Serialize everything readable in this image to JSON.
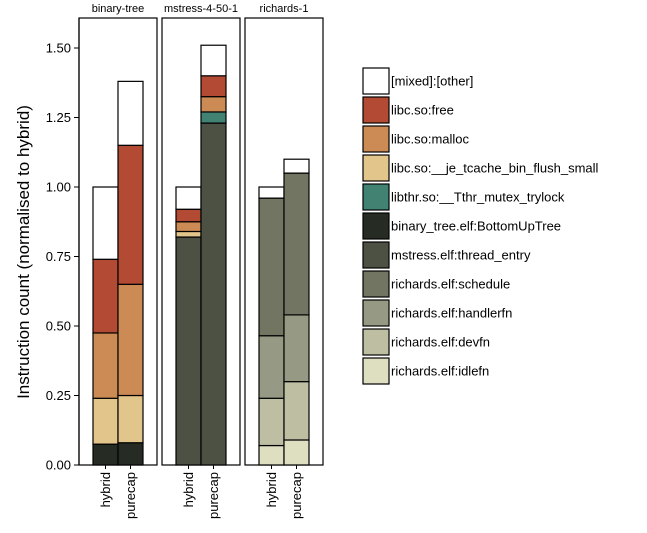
{
  "chart_data": {
    "type": "bar",
    "stacked": true,
    "facets": [
      "binary-tree",
      "mstress-4-50-1",
      "richards-1"
    ],
    "categories": [
      "hybrid",
      "purecap"
    ],
    "ylabel": "Instruction count (normalised to hybrid)",
    "xlabel": "",
    "ylim": [
      0,
      1.55
    ],
    "yticks": [
      0.0,
      0.25,
      0.5,
      0.75,
      1.0,
      1.25,
      1.5
    ],
    "ytick_labels": [
      "0.00",
      "0.25",
      "0.50",
      "0.75",
      "1.00",
      "1.25",
      "1.50"
    ],
    "legend_position": "right",
    "legend": [
      {
        "label": "[mixed]:[other]",
        "color": "#ffffff"
      },
      {
        "label": "libc.so:free",
        "color": "#b34b34"
      },
      {
        "label": "libc.so:malloc",
        "color": "#cc8a55"
      },
      {
        "label": "libc.so:__je_tcache_bin_flush_small",
        "color": "#e2c58a"
      },
      {
        "label": "libthr.so:__Tthr_mutex_trylock",
        "color": "#418273"
      },
      {
        "label": "binary_tree.elf:BottomUpTree",
        "color": "#262c24"
      },
      {
        "label": "mstress.elf:thread_entry",
        "color": "#4c5144"
      },
      {
        "label": "richards.elf:schedule",
        "color": "#717562"
      },
      {
        "label": "richards.elf:handlerfn",
        "color": "#969a84"
      },
      {
        "label": "richards.elf:devfn",
        "color": "#bdbea2"
      },
      {
        "label": "richards.elf:idlefn",
        "color": "#dedec0"
      }
    ],
    "bars": [
      {
        "facet": "binary-tree",
        "category": "hybrid",
        "segments": [
          {
            "series": "binary_tree.elf:BottomUpTree",
            "value": 0.075
          },
          {
            "series": "libc.so:__je_tcache_bin_flush_small",
            "value": 0.165
          },
          {
            "series": "libc.so:malloc",
            "value": 0.235
          },
          {
            "series": "libc.so:free",
            "value": 0.265
          },
          {
            "series": "[mixed]:[other]",
            "value": 0.26
          }
        ]
      },
      {
        "facet": "binary-tree",
        "category": "purecap",
        "segments": [
          {
            "series": "binary_tree.elf:BottomUpTree",
            "value": 0.08
          },
          {
            "series": "libc.so:__je_tcache_bin_flush_small",
            "value": 0.17
          },
          {
            "series": "libc.so:malloc",
            "value": 0.4
          },
          {
            "series": "libc.so:free",
            "value": 0.5
          },
          {
            "series": "[mixed]:[other]",
            "value": 0.23
          }
        ]
      },
      {
        "facet": "mstress-4-50-1",
        "category": "hybrid",
        "segments": [
          {
            "series": "mstress.elf:thread_entry",
            "value": 0.82
          },
          {
            "series": "libc.so:__je_tcache_bin_flush_small",
            "value": 0.02
          },
          {
            "series": "libc.so:malloc",
            "value": 0.035
          },
          {
            "series": "libc.so:free",
            "value": 0.045
          },
          {
            "series": "[mixed]:[other]",
            "value": 0.08
          }
        ]
      },
      {
        "facet": "mstress-4-50-1",
        "category": "purecap",
        "segments": [
          {
            "series": "mstress.elf:thread_entry",
            "value": 1.23
          },
          {
            "series": "libthr.so:__Tthr_mutex_trylock",
            "value": 0.04
          },
          {
            "series": "libc.so:malloc",
            "value": 0.055
          },
          {
            "series": "libc.so:free",
            "value": 0.075
          },
          {
            "series": "[mixed]:[other]",
            "value": 0.11
          }
        ]
      },
      {
        "facet": "richards-1",
        "category": "hybrid",
        "segments": [
          {
            "series": "richards.elf:idlefn",
            "value": 0.07
          },
          {
            "series": "richards.elf:devfn",
            "value": 0.17
          },
          {
            "series": "richards.elf:handlerfn",
            "value": 0.225
          },
          {
            "series": "richards.elf:schedule",
            "value": 0.495
          },
          {
            "series": "[mixed]:[other]",
            "value": 0.04
          }
        ]
      },
      {
        "facet": "richards-1",
        "category": "purecap",
        "segments": [
          {
            "series": "richards.elf:idlefn",
            "value": 0.09
          },
          {
            "series": "richards.elf:devfn",
            "value": 0.21
          },
          {
            "series": "richards.elf:handlerfn",
            "value": 0.24
          },
          {
            "series": "richards.elf:schedule",
            "value": 0.51
          },
          {
            "series": "[mixed]:[other]",
            "value": 0.05
          }
        ]
      }
    ]
  }
}
